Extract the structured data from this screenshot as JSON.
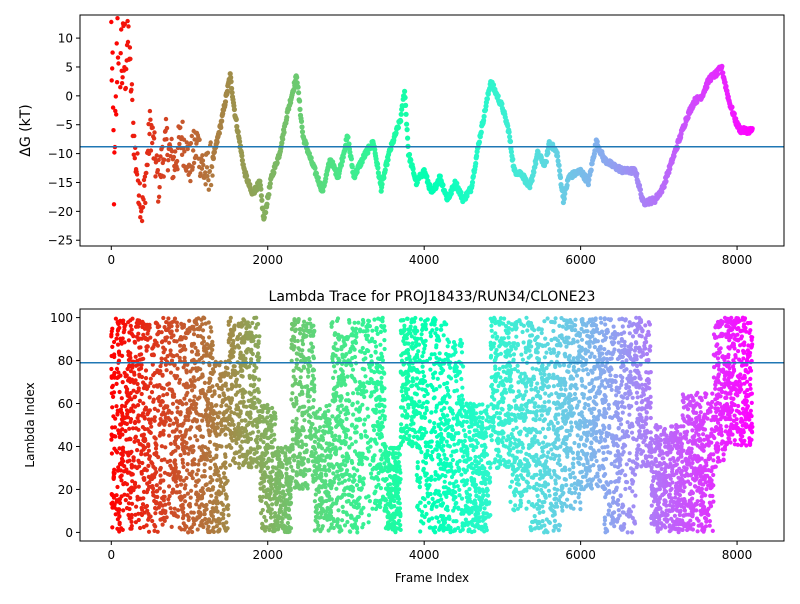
{
  "chart_data": [
    {
      "type": "scatter",
      "title": "",
      "xlabel": "",
      "ylabel": "ΔG (kT)",
      "xlim": [
        -400,
        8600
      ],
      "ylim": [
        -26,
        14
      ],
      "xticks": [
        0,
        2000,
        4000,
        6000,
        8000
      ],
      "yticks": [
        -25,
        -20,
        -15,
        -10,
        -5,
        0,
        5,
        10
      ],
      "x_tick_labels": [
        "0",
        "2000",
        "4000",
        "6000",
        "8000"
      ],
      "y_tick_labels": [
        "−25",
        "−20",
        "−15",
        "−10",
        "−5",
        "0",
        "5",
        "10"
      ],
      "hline": -8.8,
      "hline_color": "#1f77b4",
      "colormap": "rainbow",
      "color_by": "frame index",
      "legend": "none",
      "grid": false,
      "trace": [
        {
          "x": 0,
          "y": 10
        },
        {
          "x": 40,
          "y": -16.7
        },
        {
          "x": 80,
          "y": 12
        },
        {
          "x": 150,
          "y": 5
        },
        {
          "x": 220,
          "y": 10
        },
        {
          "x": 300,
          "y": -10
        },
        {
          "x": 400,
          "y": -20
        },
        {
          "x": 500,
          "y": -5
        },
        {
          "x": 600,
          "y": -15
        },
        {
          "x": 700,
          "y": -8
        },
        {
          "x": 800,
          "y": -12
        },
        {
          "x": 900,
          "y": -7
        },
        {
          "x": 1000,
          "y": -12
        },
        {
          "x": 1100,
          "y": -8
        },
        {
          "x": 1200,
          "y": -14
        },
        {
          "x": 1300,
          "y": -11
        },
        {
          "x": 1400,
          "y": -5
        },
        {
          "x": 1520,
          "y": 3.5
        },
        {
          "x": 1580,
          "y": -3
        },
        {
          "x": 1700,
          "y": -13
        },
        {
          "x": 1800,
          "y": -17
        },
        {
          "x": 1900,
          "y": -15
        },
        {
          "x": 1950,
          "y": -21.5
        },
        {
          "x": 2050,
          "y": -14
        },
        {
          "x": 2150,
          "y": -10
        },
        {
          "x": 2250,
          "y": -3
        },
        {
          "x": 2370,
          "y": 3.5
        },
        {
          "x": 2450,
          "y": -7
        },
        {
          "x": 2550,
          "y": -11
        },
        {
          "x": 2700,
          "y": -16.5
        },
        {
          "x": 2800,
          "y": -11
        },
        {
          "x": 2900,
          "y": -14
        },
        {
          "x": 3020,
          "y": -7
        },
        {
          "x": 3100,
          "y": -14
        },
        {
          "x": 3250,
          "y": -10
        },
        {
          "x": 3350,
          "y": -8
        },
        {
          "x": 3450,
          "y": -16
        },
        {
          "x": 3550,
          "y": -10
        },
        {
          "x": 3600,
          "y": -8
        },
        {
          "x": 3700,
          "y": -4
        },
        {
          "x": 3750,
          "y": 1
        },
        {
          "x": 3800,
          "y": -10
        },
        {
          "x": 3900,
          "y": -15
        },
        {
          "x": 4000,
          "y": -13
        },
        {
          "x": 4100,
          "y": -17
        },
        {
          "x": 4200,
          "y": -14
        },
        {
          "x": 4300,
          "y": -18
        },
        {
          "x": 4400,
          "y": -15
        },
        {
          "x": 4500,
          "y": -18
        },
        {
          "x": 4600,
          "y": -16
        },
        {
          "x": 4700,
          "y": -8
        },
        {
          "x": 4850,
          "y": 2.5
        },
        {
          "x": 5000,
          "y": -2
        },
        {
          "x": 5080,
          "y": -6
        },
        {
          "x": 5150,
          "y": -13
        },
        {
          "x": 5250,
          "y": -13.5
        },
        {
          "x": 5350,
          "y": -16
        },
        {
          "x": 5450,
          "y": -10
        },
        {
          "x": 5550,
          "y": -12
        },
        {
          "x": 5600,
          "y": -8
        },
        {
          "x": 5700,
          "y": -10
        },
        {
          "x": 5780,
          "y": -18
        },
        {
          "x": 5850,
          "y": -14
        },
        {
          "x": 6000,
          "y": -13
        },
        {
          "x": 6100,
          "y": -15
        },
        {
          "x": 6200,
          "y": -8
        },
        {
          "x": 6300,
          "y": -11
        },
        {
          "x": 6400,
          "y": -12
        },
        {
          "x": 6550,
          "y": -13
        },
        {
          "x": 6700,
          "y": -13
        },
        {
          "x": 6800,
          "y": -18.5
        },
        {
          "x": 6950,
          "y": -18
        },
        {
          "x": 7050,
          "y": -16
        },
        {
          "x": 7200,
          "y": -10
        },
        {
          "x": 7350,
          "y": -4
        },
        {
          "x": 7450,
          "y": -1
        },
        {
          "x": 7550,
          "y": 0
        },
        {
          "x": 7650,
          "y": 3
        },
        {
          "x": 7750,
          "y": 4
        },
        {
          "x": 7800,
          "y": 5
        },
        {
          "x": 7900,
          "y": -1
        },
        {
          "x": 8000,
          "y": -5
        },
        {
          "x": 8050,
          "y": -6
        },
        {
          "x": 8200,
          "y": -6
        }
      ]
    },
    {
      "type": "scatter",
      "title": "Lambda Trace for PROJ18433/RUN34/CLONE23",
      "xlabel": "Frame Index",
      "ylabel": "Lambda Index",
      "xlim": [
        -400,
        8600
      ],
      "ylim": [
        -4,
        104
      ],
      "xticks": [
        0,
        2000,
        4000,
        6000,
        8000
      ],
      "yticks": [
        0,
        20,
        40,
        60,
        80,
        100
      ],
      "x_tick_labels": [
        "0",
        "2000",
        "4000",
        "6000",
        "8000"
      ],
      "y_tick_labels": [
        "0",
        "20",
        "40",
        "60",
        "80",
        "100"
      ],
      "hline": 79,
      "hline_color": "#1f77b4",
      "colormap": "rainbow",
      "color_by": "frame index",
      "legend": "none",
      "grid": false,
      "bands": [
        {
          "x0": 0,
          "x1": 300,
          "y0": 0,
          "y1": 100
        },
        {
          "x0": 300,
          "x1": 1300,
          "y0": 0,
          "y1": 100
        },
        {
          "x0": 1300,
          "x1": 1500,
          "y0": 0,
          "y1": 80
        },
        {
          "x0": 1500,
          "x1": 1900,
          "y0": 30,
          "y1": 100
        },
        {
          "x0": 1900,
          "x1": 2100,
          "y0": 0,
          "y1": 60
        },
        {
          "x0": 2100,
          "x1": 2300,
          "y0": 0,
          "y1": 40
        },
        {
          "x0": 2300,
          "x1": 2600,
          "y0": 20,
          "y1": 100
        },
        {
          "x0": 2600,
          "x1": 2800,
          "y0": 0,
          "y1": 60
        },
        {
          "x0": 2800,
          "x1": 3300,
          "y0": 0,
          "y1": 100
        },
        {
          "x0": 3300,
          "x1": 3500,
          "y0": 10,
          "y1": 100
        },
        {
          "x0": 3500,
          "x1": 3700,
          "y0": 0,
          "y1": 40
        },
        {
          "x0": 3700,
          "x1": 3900,
          "y0": 40,
          "y1": 100
        },
        {
          "x0": 3900,
          "x1": 4300,
          "y0": 0,
          "y1": 100
        },
        {
          "x0": 4300,
          "x1": 4500,
          "y0": 0,
          "y1": 90
        },
        {
          "x0": 4500,
          "x1": 4850,
          "y0": 0,
          "y1": 60
        },
        {
          "x0": 4850,
          "x1": 5100,
          "y0": 30,
          "y1": 100
        },
        {
          "x0": 5100,
          "x1": 5350,
          "y0": 10,
          "y1": 100
        },
        {
          "x0": 5350,
          "x1": 5500,
          "y0": 0,
          "y1": 100
        },
        {
          "x0": 5500,
          "x1": 5750,
          "y0": 0,
          "y1": 100
        },
        {
          "x0": 5750,
          "x1": 6000,
          "y0": 10,
          "y1": 100
        },
        {
          "x0": 6000,
          "x1": 6300,
          "y0": 20,
          "y1": 100
        },
        {
          "x0": 6300,
          "x1": 6700,
          "y0": 0,
          "y1": 100
        },
        {
          "x0": 6700,
          "x1": 6900,
          "y0": 30,
          "y1": 100
        },
        {
          "x0": 6900,
          "x1": 7300,
          "y0": 0,
          "y1": 50
        },
        {
          "x0": 7300,
          "x1": 7700,
          "y0": 0,
          "y1": 65
        },
        {
          "x0": 7700,
          "x1": 7850,
          "y0": 30,
          "y1": 100
        },
        {
          "x0": 7850,
          "x1": 8200,
          "y0": 40,
          "y1": 100
        }
      ]
    }
  ]
}
